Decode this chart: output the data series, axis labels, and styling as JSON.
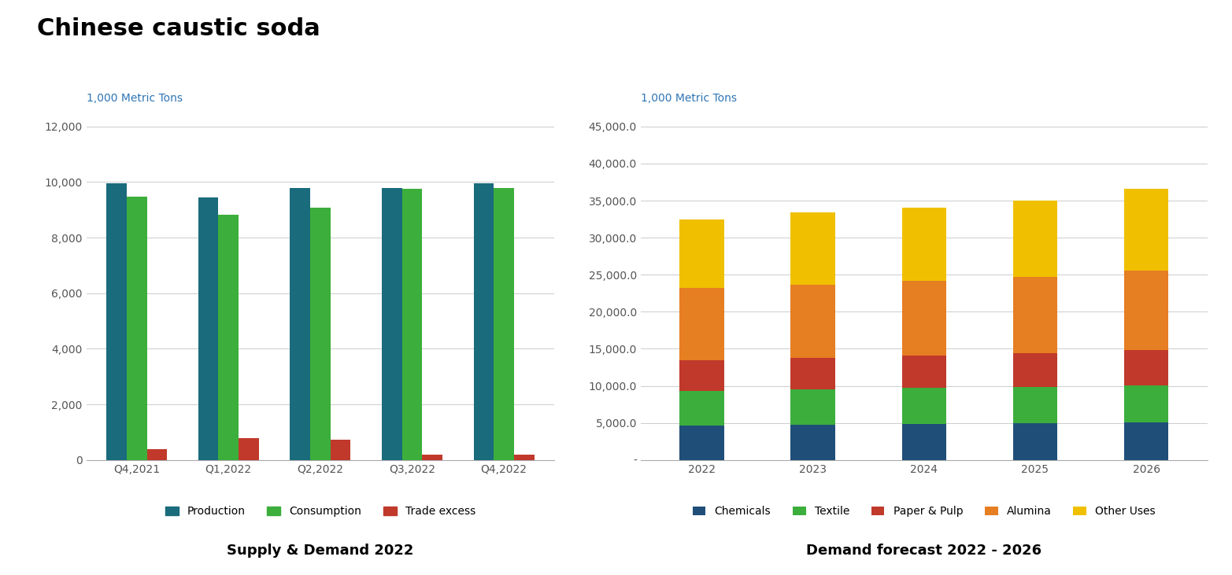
{
  "title": "Chinese caustic soda",
  "title_fontsize": 22,
  "title_fontweight": "bold",
  "background_color": "#ffffff",
  "chart1": {
    "unit_label": "1,000 Metric Tons",
    "unit_label_color": "#2e75b6",
    "ylim": [
      0,
      12000
    ],
    "yticks": [
      0,
      2000,
      4000,
      6000,
      8000,
      10000,
      12000
    ],
    "categories": [
      "Q4,2021",
      "Q1,2022",
      "Q2,2022",
      "Q3,2022",
      "Q4,2022"
    ],
    "production": [
      9950,
      9450,
      9800,
      9800,
      9950
    ],
    "consumption": [
      9480,
      8830,
      9080,
      9760,
      9800
    ],
    "trade_excess": [
      390,
      780,
      730,
      180,
      180
    ],
    "colors": {
      "production": "#1a6b7c",
      "consumption": "#3cae3c",
      "trade_excess": "#c0392b"
    },
    "legend_labels": [
      "Production",
      "Consumption",
      "Trade excess"
    ],
    "subtitle": "Supply & Demand 2022",
    "subtitle_fontsize": 13,
    "subtitle_fontweight": "bold"
  },
  "chart2": {
    "unit_label": "1,000 Metric Tons",
    "unit_label_color": "#2e75b6",
    "ylim": [
      0,
      45000
    ],
    "categories": [
      "2022",
      "2023",
      "2024",
      "2025",
      "2026"
    ],
    "chemicals": [
      4700,
      4800,
      4900,
      5000,
      5100
    ],
    "textile": [
      4600,
      4700,
      4800,
      4900,
      5000
    ],
    "paper_pulp": [
      4200,
      4300,
      4400,
      4500,
      4700
    ],
    "alumina": [
      9700,
      9900,
      10100,
      10300,
      10800
    ],
    "other_uses": [
      9300,
      9700,
      9800,
      10300,
      11000
    ],
    "colors": {
      "chemicals": "#1f4e79",
      "textile": "#3cae3c",
      "paper_pulp": "#c0392b",
      "alumina": "#e67e22",
      "other_uses": "#f0c000"
    },
    "legend_labels": [
      "Chemicals",
      "Textile",
      "Paper & Pulp",
      "Alumina",
      "Other Uses"
    ],
    "subtitle": "Demand forecast 2022 - 2026",
    "subtitle_fontsize": 13,
    "subtitle_fontweight": "bold"
  }
}
